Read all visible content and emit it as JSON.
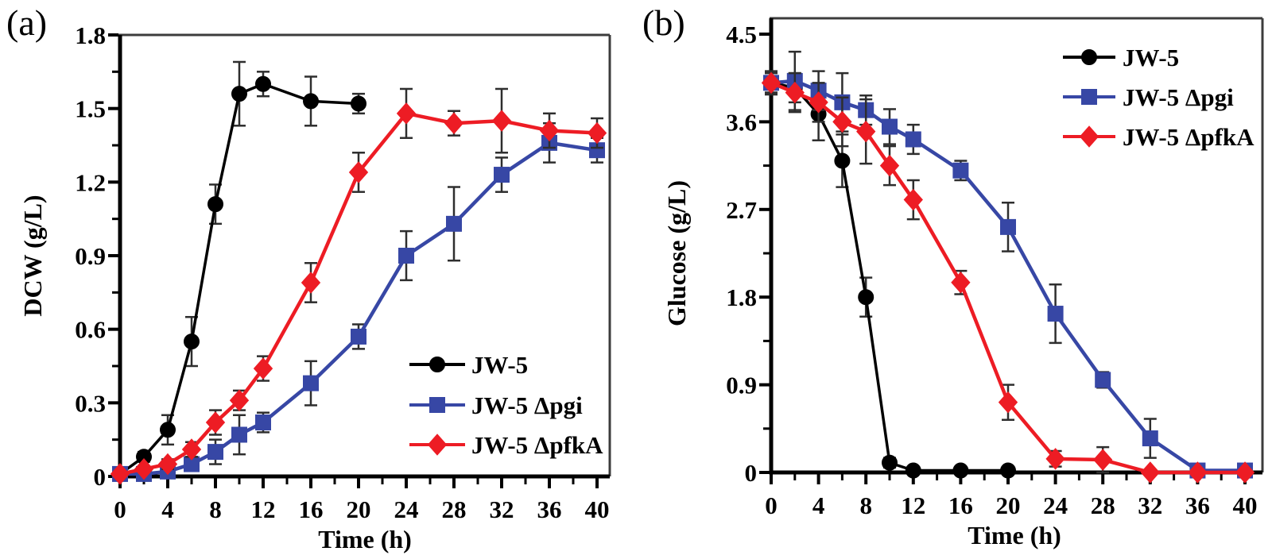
{
  "figure": {
    "background": "#ffffff",
    "error_bar_color": "#2e2e2e",
    "axis_color": "#000000",
    "frame_color": "#3c3c3c"
  },
  "panels": [
    {
      "label": "(a)"
    },
    {
      "label": "(b)"
    }
  ],
  "chart_data": [
    {
      "type": "line",
      "panel": "a",
      "title": "",
      "xlabel": "Time (h)",
      "ylabel": "DCW (g/L)",
      "xlim": [
        0,
        40
      ],
      "ylim": [
        0,
        1.8
      ],
      "grid": false,
      "legend_position": "lower-right",
      "x_major_ticks": [
        0,
        4,
        8,
        12,
        16,
        20,
        24,
        28,
        32,
        36,
        40
      ],
      "x_tick_labels": [
        "0",
        "4",
        "8",
        "12",
        "16",
        "20",
        "24",
        "28",
        "32",
        "36",
        "40"
      ],
      "x_minor_step": 2,
      "y_major_ticks": [
        0,
        0.3,
        0.6,
        0.9,
        1.2,
        1.5,
        1.8
      ],
      "y_tick_labels": [
        "0",
        "0.3",
        "0.6",
        "0.9",
        "1.2",
        "1.5",
        "1.8"
      ],
      "y_minor_step": 0.15,
      "series": [
        {
          "name": "JW-5",
          "color": "#000000",
          "marker": "circle",
          "x": [
            0,
            2,
            4,
            6,
            8,
            10,
            12,
            16,
            20
          ],
          "y": [
            0.01,
            0.08,
            0.19,
            0.55,
            1.11,
            1.56,
            1.6,
            1.53,
            1.52
          ],
          "yerr": [
            0,
            0.02,
            0.06,
            0.1,
            0.08,
            0.13,
            0.05,
            0.1,
            0.04
          ]
        },
        {
          "name": "JW-5 Δpgi",
          "color": "#3747a5",
          "marker": "square",
          "x": [
            0,
            2,
            4,
            6,
            8,
            10,
            12,
            16,
            20,
            24,
            28,
            32,
            36,
            40
          ],
          "y": [
            0.01,
            0.01,
            0.02,
            0.05,
            0.1,
            0.17,
            0.22,
            0.38,
            0.57,
            0.9,
            1.03,
            1.23,
            1.36,
            1.33
          ],
          "yerr": [
            0,
            0,
            0,
            0.02,
            0.05,
            0.08,
            0.04,
            0.09,
            0.05,
            0.1,
            0.15,
            0.07,
            0.08,
            0.05
          ]
        },
        {
          "name": "JW-5 ΔpfkA",
          "color": "#ed1c24",
          "marker": "diamond",
          "x": [
            0,
            2,
            4,
            6,
            8,
            10,
            12,
            16,
            20,
            24,
            28,
            32,
            36,
            40
          ],
          "y": [
            0.01,
            0.03,
            0.05,
            0.11,
            0.22,
            0.31,
            0.44,
            0.79,
            1.24,
            1.48,
            1.44,
            1.45,
            1.41,
            1.4
          ],
          "yerr": [
            0,
            0,
            0.02,
            0.03,
            0.05,
            0.04,
            0.05,
            0.08,
            0.08,
            0.1,
            0.05,
            0.13,
            0.07,
            0.06
          ]
        }
      ]
    },
    {
      "type": "line",
      "panel": "b",
      "title": "",
      "xlabel": "Time (h)",
      "ylabel": "Glucose (g/L)",
      "xlim": [
        0,
        40
      ],
      "ylim": [
        0,
        4.5
      ],
      "grid": false,
      "legend_position": "upper-right",
      "x_major_ticks": [
        0,
        4,
        8,
        12,
        16,
        20,
        24,
        28,
        32,
        36,
        40
      ],
      "x_tick_labels": [
        "0",
        "4",
        "8",
        "12",
        "16",
        "20",
        "24",
        "28",
        "32",
        "36",
        "40"
      ],
      "x_minor_step": 2,
      "y_major_ticks": [
        0,
        0.9,
        1.8,
        2.7,
        3.6,
        4.5
      ],
      "y_tick_labels": [
        "0",
        "0.9",
        "1.8",
        "2.7",
        "3.6",
        "4.5"
      ],
      "y_minor_step": 0.45,
      "series": [
        {
          "name": "JW-5",
          "color": "#000000",
          "marker": "circle",
          "x": [
            0,
            2,
            4,
            6,
            8,
            10,
            12,
            16,
            20
          ],
          "y": [
            4.0,
            3.95,
            3.68,
            3.2,
            1.8,
            0.1,
            0.02,
            0.02,
            0.02
          ],
          "yerr": [
            0.1,
            0.15,
            0.27,
            0.27,
            0.2,
            0.05,
            0,
            0,
            0
          ]
        },
        {
          "name": "JW-5 Δpgi",
          "color": "#3747a5",
          "marker": "square",
          "x": [
            0,
            2,
            4,
            6,
            8,
            10,
            12,
            16,
            20,
            24,
            28,
            32,
            36,
            40
          ],
          "y": [
            4.0,
            4.02,
            3.92,
            3.8,
            3.72,
            3.55,
            3.42,
            3.1,
            2.52,
            1.63,
            0.95,
            0.35,
            0.02,
            0.02
          ],
          "yerr": [
            0.12,
            0.3,
            0.2,
            0.3,
            0.15,
            0.18,
            0.15,
            0.1,
            0.25,
            0.3,
            0.08,
            0.2,
            0.05,
            0
          ]
        },
        {
          "name": "JW-5 ΔpfkA",
          "color": "#ed1c24",
          "marker": "diamond",
          "x": [
            0,
            2,
            4,
            6,
            8,
            10,
            12,
            16,
            20,
            24,
            28,
            32,
            36,
            40
          ],
          "y": [
            4.0,
            3.9,
            3.8,
            3.6,
            3.5,
            3.15,
            2.8,
            1.95,
            0.72,
            0.14,
            0.13,
            0.0,
            0.0,
            0.0
          ],
          "yerr": [
            0.1,
            0.2,
            0.2,
            0.25,
            0.33,
            0.2,
            0.2,
            0.12,
            0.18,
            0.08,
            0.13,
            0,
            0,
            0
          ]
        }
      ]
    }
  ]
}
